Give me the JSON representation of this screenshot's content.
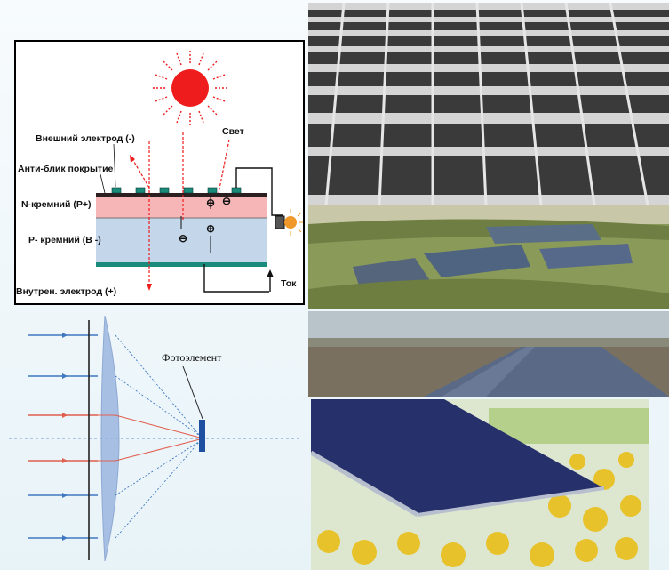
{
  "solar_cell_diagram": {
    "labels": {
      "outer_electrode": "Внешний электрод (-)",
      "antireflection": "Анти-блик покрытие",
      "n_silicon": "N-кремний (Р+)",
      "p_silicon": "Р- кремний (В -)",
      "inner_electrode": "Внутрен. электрод (+)",
      "light": "Свет",
      "current": "Ток"
    },
    "charges": {
      "minus": "⊖",
      "plus": "⊕"
    },
    "colors": {
      "sun": "#ee1c1c",
      "n_layer": "#f6b6b8",
      "p_layer": "#c3d6ea",
      "electrode": "#1a8a7a",
      "bulb": "#f0982a"
    }
  },
  "lens_diagram": {
    "label": "Фотоэлемент",
    "colors": {
      "blue_ray": "#3f78c0",
      "red_ray": "#e05f4e",
      "lens": "#9bb6e0",
      "photocell": "#1f4fa0"
    }
  },
  "photos": {
    "field": "solar-panel-field-photo",
    "aerial": "aerial-solar-farm-photo",
    "road": "panel-row-horizon-photo",
    "sunflower": "panels-sunflowers-photo"
  }
}
